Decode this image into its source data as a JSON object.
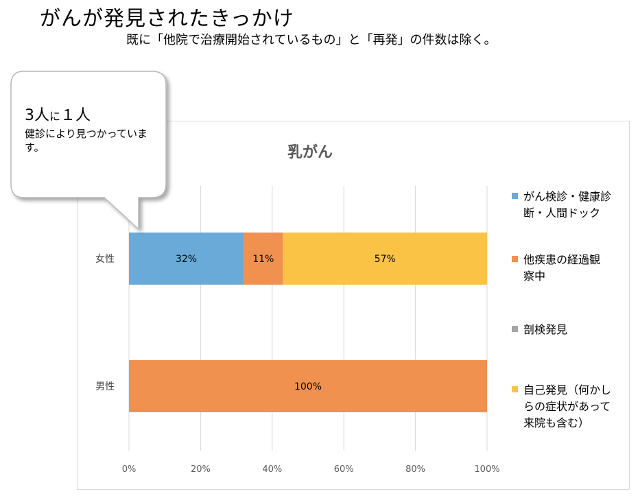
{
  "page": {
    "title": "がんが発見されたきっかけ",
    "subtitle": "既に「他院で治療開始されているもの」と「再発」の件数は除く。"
  },
  "callout": {
    "part1": "3人",
    "part2": "に",
    "part3": "１人",
    "sub": "健診により見つかっています。"
  },
  "chart_data": {
    "type": "bar",
    "orientation": "horizontal",
    "stacked": "percent",
    "title": "乳がん",
    "categories": [
      "女性",
      "男性"
    ],
    "series": [
      {
        "name": "がん検診・健康診断・人間ドック",
        "color": "#6aaad8",
        "values": [
          32,
          0
        ]
      },
      {
        "name": "他疾患の経過観察中",
        "color": "#f0914f",
        "values": [
          11,
          100
        ]
      },
      {
        "name": "剖検発見",
        "color": "#a5a5a5",
        "values": [
          0,
          0
        ]
      },
      {
        "name": "自己発見（何かしらの症状があって来院も含む）",
        "color": "#fbc346",
        "values": [
          57,
          0
        ]
      }
    ],
    "data_labels": [
      [
        "32%",
        "11%",
        "57%"
      ],
      [
        "100%"
      ]
    ],
    "x_ticks": [
      "0%",
      "20%",
      "40%",
      "60%",
      "80%",
      "100%"
    ],
    "xlim": [
      0,
      100
    ],
    "grid": true,
    "legend_position": "right"
  }
}
